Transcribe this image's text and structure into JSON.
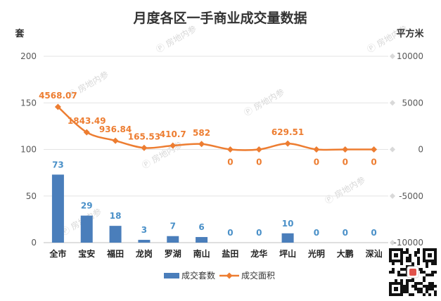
{
  "chart_data": {
    "type": "bar",
    "title": "月度各区一手商业成交量数据",
    "categories": [
      "全市",
      "宝安",
      "福田",
      "龙岗",
      "罗湖",
      "南山",
      "盐田",
      "龙华",
      "坪山",
      "光明",
      "大鹏",
      "深汕"
    ],
    "left_axis": {
      "unit": "套",
      "ylim": [
        0,
        200
      ],
      "ticks": [
        0,
        50,
        100,
        150,
        200
      ]
    },
    "right_axis": {
      "unit": "平方米",
      "ylim": [
        -10000,
        10000
      ],
      "ticks": [
        -10000,
        -5000,
        0,
        5000,
        10000
      ]
    },
    "grid": true,
    "legend_position": "bottom",
    "series": [
      {
        "name": "成交套数",
        "type": "bar",
        "axis": "left",
        "color": "#4a7ebb",
        "values": [
          73,
          29,
          18,
          3,
          7,
          6,
          0,
          0,
          10,
          0,
          0,
          0
        ],
        "labels": [
          "73",
          "29",
          "18",
          "3",
          "7",
          "6",
          "0",
          "0",
          "10",
          "0",
          "0",
          "0"
        ]
      },
      {
        "name": "成交面积",
        "type": "line",
        "axis": "right",
        "color": "#ed7d31",
        "values": [
          4568.07,
          1843.49,
          936.84,
          165.53,
          410.7,
          582,
          0,
          0,
          629.51,
          0,
          0,
          0
        ],
        "labels": [
          "4568.07",
          "1843.49",
          "936.84",
          "165.53",
          "410.7",
          "582",
          "0",
          "0",
          "629.51",
          "0",
          "0",
          "0"
        ]
      }
    ]
  },
  "watermark": {
    "text": "房地内参"
  },
  "qr_code": {
    "icon": "qr-code-icon"
  }
}
